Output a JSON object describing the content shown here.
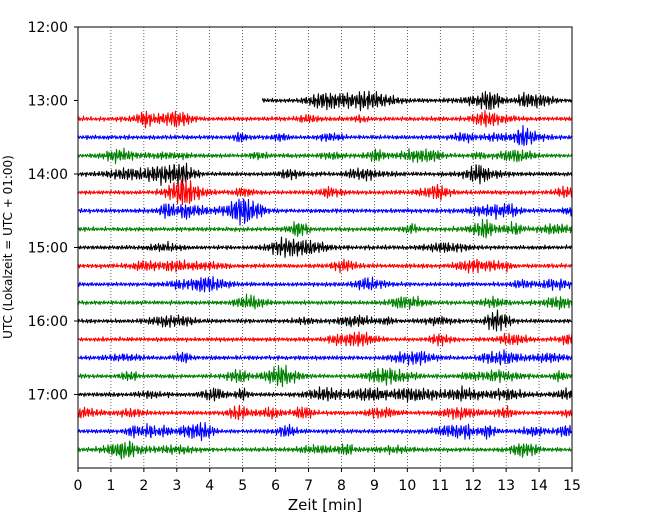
{
  "chart_data": {
    "type": "line",
    "title": "",
    "xlabel": "Zeit  [min]",
    "ylabel": "UTC (Lokalzeit = UTC + 01:00)",
    "xlim": [
      0,
      15
    ],
    "ylim": [
      "12:00",
      "18:00"
    ],
    "x_ticks": [
      "0",
      "1",
      "2",
      "3",
      "4",
      "5",
      "6",
      "7",
      "8",
      "9",
      "10",
      "11",
      "12",
      "13",
      "14",
      "15"
    ],
    "y_ticks": [
      "12:00",
      "13:00",
      "14:00",
      "15:00",
      "16:00",
      "17:00"
    ],
    "grid": "vertical dotted",
    "trace_interval_min": 15,
    "color_cycle": [
      "#000000",
      "#ff0000",
      "#0000ff",
      "#008000"
    ],
    "traces": [
      {
        "start": "13:00",
        "x_start": 5.6,
        "x_end": 15,
        "color": "#000000"
      },
      {
        "start": "13:15",
        "x_start": 0,
        "x_end": 15,
        "color": "#ff0000"
      },
      {
        "start": "13:30",
        "x_start": 0,
        "x_end": 15,
        "color": "#0000ff"
      },
      {
        "start": "13:45",
        "x_start": 0,
        "x_end": 15,
        "color": "#008000"
      },
      {
        "start": "14:00",
        "x_start": 0,
        "x_end": 15,
        "color": "#000000"
      },
      {
        "start": "14:15",
        "x_start": 0,
        "x_end": 15,
        "color": "#ff0000"
      },
      {
        "start": "14:30",
        "x_start": 0,
        "x_end": 15,
        "color": "#0000ff"
      },
      {
        "start": "14:45",
        "x_start": 0,
        "x_end": 15,
        "color": "#008000"
      },
      {
        "start": "15:00",
        "x_start": 0,
        "x_end": 15,
        "color": "#000000"
      },
      {
        "start": "15:15",
        "x_start": 0,
        "x_end": 15,
        "color": "#ff0000"
      },
      {
        "start": "15:30",
        "x_start": 0,
        "x_end": 15,
        "color": "#0000ff"
      },
      {
        "start": "15:45",
        "x_start": 0,
        "x_end": 15,
        "color": "#008000"
      },
      {
        "start": "16:00",
        "x_start": 0,
        "x_end": 15,
        "color": "#000000"
      },
      {
        "start": "16:15",
        "x_start": 0,
        "x_end": 15,
        "color": "#ff0000"
      },
      {
        "start": "16:30",
        "x_start": 0,
        "x_end": 15,
        "color": "#0000ff"
      },
      {
        "start": "16:45",
        "x_start": 0,
        "x_end": 15,
        "color": "#008000"
      },
      {
        "start": "17:00",
        "x_start": 0,
        "x_end": 15,
        "color": "#000000"
      },
      {
        "start": "17:15",
        "x_start": 0,
        "x_end": 15,
        "color": "#ff0000"
      },
      {
        "start": "17:30",
        "x_start": 0,
        "x_end": 15,
        "color": "#0000ff"
      },
      {
        "start": "17:45",
        "x_start": 0,
        "x_end": 15,
        "color": "#008000"
      }
    ]
  }
}
